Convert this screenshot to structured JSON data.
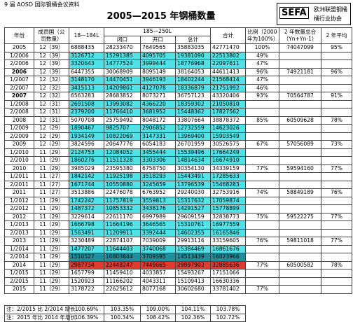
{
  "header": {
    "source": "9 届 AOSD 国际钢桶会议资料",
    "title": "2005—2015 年钢桶数量",
    "logo": "SEFA",
    "org": [
      "欧洲联盟钢桶",
      "桶行业协会"
    ]
  },
  "table": {
    "columns": [
      "年份",
      "成员国（公司数量）",
      "18—184L",
      "185—250L",
      "合计",
      "比例（2000年为100%）",
      "2 年数量总合（Yn+Yn-1）",
      "2 年平均"
    ],
    "subcolumns": [
      "闭口",
      "开口",
      "总计"
    ],
    "rows": [
      {
        "cells": [
          "2005",
          "12（39）",
          "6888435",
          "28233470",
          "7649565",
          "35883035",
          "42771470",
          "100%",
          "74047099",
          "95%"
        ]
      },
      {
        "cells": [
          "1/2006",
          "12（39）",
          "3126712",
          "15291385",
          "4095705",
          "19381090",
          "22513802",
          "49%"
        ],
        "fill": "#4fe3e8"
      },
      {
        "cells": [
          "2/2006",
          "12（39）",
          "3320643",
          "14777524",
          "3999444",
          "18776968",
          "22097611",
          "47%"
        ],
        "fill": "#4fe3e8"
      },
      {
        "cells": [
          "2006",
          "12（39）",
          "6447355",
          "30068909",
          "8095149",
          "38164053",
          "44611413",
          "96%",
          "74921181",
          "96%"
        ],
        "bold": true
      },
      {
        "cells": [
          "1/2007",
          "12（32）",
          "3148170",
          "14470451",
          "3946193",
          "18402244",
          "21568414",
          "47%"
        ],
        "fill": "#4fe3e8"
      },
      {
        "cells": [
          "2/2007",
          "12（32）",
          "3415113",
          "14209801",
          "4127078",
          "18336879",
          "21751992",
          "46%"
        ],
        "fill": "#4fe3e8"
      },
      {
        "cells": [
          "2007",
          "12（32）",
          "6563283",
          "28683852",
          "8073271",
          "36757123",
          "43320406",
          "93%",
          "70564787",
          "91%"
        ],
        "bold": true
      },
      {
        "cells": [
          "1/2008",
          "12（31）",
          "2691508",
          "13993082",
          "4366220",
          "18359302",
          "21050810"
        ],
        "fill": "#4fe3e8"
      },
      {
        "cells": [
          "2/2008",
          "12（31）",
          "2379200",
          "11766410",
          "3681952",
          "15448362",
          "17827562"
        ],
        "fill": "#4fe3e8"
      },
      {
        "cells": [
          "2008",
          "12（31）",
          "5070708",
          "25759492",
          "8048172",
          "33807664",
          "38878372",
          "85%",
          "60509628",
          "78%"
        ]
      },
      {
        "cells": [
          "1/2009",
          "12（29）",
          "1890467",
          "9825707",
          "2906852",
          "12732559",
          "14623026"
        ],
        "fill": "#4fe3e8"
      },
      {
        "cells": [
          "2/2009",
          "12（29）",
          "1934149",
          "10822069",
          "3147331",
          "13969400",
          "15903549"
        ],
        "fill": "#4fe3e8"
      },
      {
        "cells": [
          "2009",
          "12（29）",
          "3824596",
          "20647776",
          "6054183",
          "26701959",
          "30526575",
          "67%",
          "57056089",
          "73%"
        ]
      },
      {
        "cells": [
          "1/2010",
          "11（29）",
          "2124753",
          "12084052",
          "3455444",
          "15539496",
          "17664249"
        ],
        "fill": "#4fe3e8"
      },
      {
        "cells": [
          "2/2010",
          "11（29）",
          "1860276",
          "11511328",
          "3303306",
          "14814634",
          "16674910"
        ],
        "fill": "#4fe3e8"
      },
      {
        "cells": [
          "2010",
          "11（29）",
          "3985029",
          "23595380",
          "6758750",
          "30354130",
          "34339159",
          "77%",
          "59594160",
          "77%"
        ]
      },
      {
        "cells": [
          "1/2011",
          "11（27）",
          "1842142",
          "11925198",
          "3518293",
          "15443491",
          "17285633"
        ],
        "fill": "#4fe3e8"
      },
      {
        "cells": [
          "2/2011",
          "11（27）",
          "1671744",
          "10550880",
          "3245659",
          "13796539",
          "15468283"
        ],
        "fill": "#4fe3e8"
      },
      {
        "cells": [
          "2011",
          "11（27）",
          "3513886",
          "22476078",
          "6763952",
          "29240030",
          "32753916",
          "74%",
          "58849189",
          "76%"
        ]
      },
      {
        "cells": [
          "1/2012",
          "11（29）",
          "1742242",
          "11757819",
          "3559813",
          "15317632",
          "17059874"
        ],
        "fill": "#4fe3e8"
      },
      {
        "cells": [
          "2/2012",
          "11（29）",
          "1487372",
          "10853332",
          "3438176",
          "14291527",
          "15778899"
        ],
        "fill": "#4fe3e8"
      },
      {
        "cells": [
          "2012",
          "11（29）",
          "3229614",
          "22611170",
          "6997989",
          "29609159",
          "32838773",
          "75%",
          "59522275",
          "77%"
        ]
      },
      {
        "cells": [
          "1/2013",
          "11（29）",
          "1666798",
          "11664196",
          "3646565",
          "15310761",
          "16977559"
        ],
        "fill": "#4fe3e8"
      },
      {
        "cells": [
          "2/2013",
          "11（29）",
          "1563491",
          "11209911",
          "3392444",
          "14602355",
          "16165846"
        ],
        "fill": "#4fe3e8"
      },
      {
        "cells": [
          "2013",
          "11（29）",
          "3230489",
          "22874107",
          "7039009",
          "29913116",
          "33159605",
          "76%",
          "59811018",
          "77%"
        ]
      },
      {
        "cells": [
          "1/2014",
          "11（29）",
          "1477207",
          "11644403",
          "3740068",
          "15384469",
          "16861676"
        ],
        "fill": "#4fe3e8"
      },
      {
        "cells": [
          "2/2014",
          "11（29）",
          "1510527",
          "10803844",
          "3709595",
          "14513439",
          "16023966"
        ],
        "fill": "#1f8f99"
      },
      {
        "cells": [
          "2014",
          "11（29）",
          "2987734",
          "22448247",
          "7449665",
          "29897902",
          "32885636",
          "77%",
          "60500582",
          "78%"
        ],
        "fill": "#e23a2e"
      },
      {
        "cells": [
          "1/2015",
          "11（29）",
          "1657799",
          "11459410",
          "4033857",
          "15493267",
          "17151066"
        ]
      },
      {
        "cells": [
          "2/2015",
          "11（29）",
          "1520923",
          "11166202",
          "4043311",
          "15109413",
          "16630336"
        ]
      },
      {
        "cells": [
          "2015",
          "11（29）",
          "3178722",
          "22625612",
          "8077168",
          "30602680",
          "33781402",
          "77%"
        ]
      }
    ]
  },
  "notes": [
    [
      "注：2/2015 比 2/2014 增长",
      "100.69%",
      "103.35%",
      "109.00%",
      "104.11%",
      "103.78%"
    ],
    [
      "注：2015 年比 2014 年增长",
      "106.39%",
      "100.34%",
      "108.42%",
      "102.36%",
      "102.72%"
    ]
  ]
}
